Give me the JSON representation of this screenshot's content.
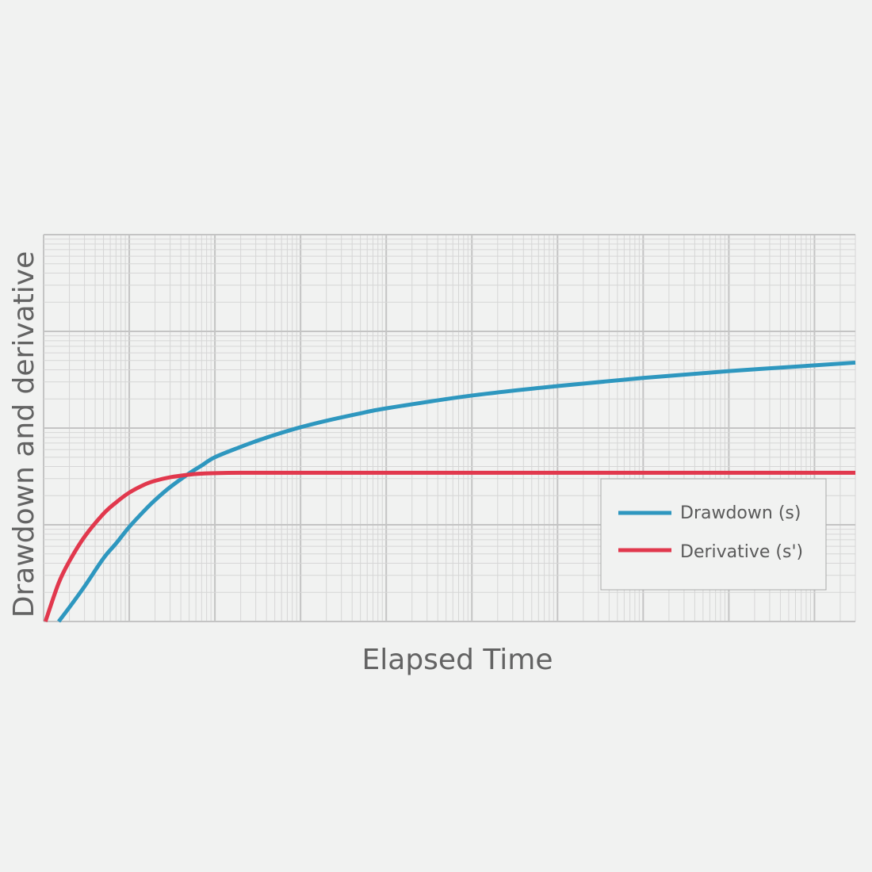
{
  "chart_data": {
    "type": "line",
    "x_scale": "log",
    "y_scale": "log",
    "xlim": [
      1,
      3000000000
    ],
    "ylim": [
      0.01,
      100
    ],
    "grid": true,
    "xlabel": "Elapsed Time",
    "ylabel": "Drawdown and derivative",
    "legend": {
      "position": "bottom-right"
    },
    "series": [
      {
        "name": "Drawdown (s)",
        "color": "#2e97bf",
        "x": [
          1.5,
          2,
          3,
          5,
          7,
          10,
          15,
          20,
          30,
          50,
          70,
          100,
          200,
          300,
          500,
          1000,
          2000,
          5000,
          10000,
          100000,
          1000000,
          10000000,
          100000000,
          1000000000,
          3000000000
        ],
        "y": [
          0.01,
          0.014,
          0.023,
          0.045,
          0.064,
          0.095,
          0.14,
          0.18,
          0.245,
          0.34,
          0.41,
          0.5,
          0.64,
          0.73,
          0.85,
          1.02,
          1.19,
          1.42,
          1.6,
          2.17,
          2.72,
          3.3,
          3.88,
          4.45,
          4.75
        ]
      },
      {
        "name": "Derivative (s')",
        "color": "#e1384d",
        "x": [
          1.05,
          1.5,
          2,
          3,
          5,
          7,
          10,
          15,
          20,
          30,
          50,
          70,
          100,
          200,
          500,
          1000,
          10000,
          100000,
          1000000,
          10000000,
          100000000,
          1000000000,
          3000000000
        ],
        "y": [
          0.01,
          0.025,
          0.042,
          0.075,
          0.13,
          0.17,
          0.215,
          0.26,
          0.285,
          0.31,
          0.33,
          0.338,
          0.342,
          0.345,
          0.345,
          0.345,
          0.345,
          0.345,
          0.345,
          0.345,
          0.345,
          0.345,
          0.345
        ]
      }
    ]
  }
}
